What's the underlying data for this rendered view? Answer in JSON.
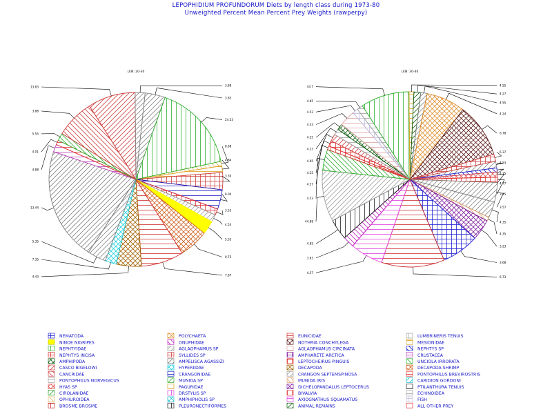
{
  "header": {
    "title": "LEPOPHIDIUM PROFUNDORUM Diets by length class during 1973-80",
    "subtitle": "Unweighted Percent Mean Percent Prey Weights (rawperpy)"
  },
  "chart_data": [
    {
      "type": "pie",
      "title": "LEN: 20-30",
      "slices": [
        {
          "label": "8.88",
          "value": 0.81,
          "prey": "OPHIUROIDEA"
        },
        {
          "label": "4.84",
          "value": 1.18,
          "prey": "PAGURIDAE"
        },
        {
          "label": "3.30",
          "value": 3.09,
          "prey": "SYLLIDES SP"
        },
        {
          "label": "8.00",
          "value": 3.52,
          "prey": "CRANGONIDAE"
        },
        {
          "label": "3.53",
          "value": 1.13,
          "prey": "NEPHTYS INCISA"
        },
        {
          "label": "4.53",
          "value": 1.35,
          "prey": "AGLAOPHAMUS SP"
        },
        {
          "label": "5.35",
          "value": 2.44,
          "prey": "NINOE NIGRIPES"
        },
        {
          "label": "9.75",
          "value": 5.31,
          "prey": "DECAPODA SHRIMP"
        },
        {
          "label": "7.87",
          "value": 7.67,
          "prey": "EUNICIDAE"
        },
        {
          "label": "4.43",
          "value": 4.52,
          "prey": "DECAPODA"
        },
        {
          "label": "7.35",
          "value": 2.03,
          "prey": "HYPERIIDAE"
        },
        {
          "label": "5.35",
          "value": 3.32,
          "prey": "CAPRELLIDAE"
        },
        {
          "label": "13.44",
          "value": 20.36,
          "prey": "AMPELISCA AGASSIZI"
        },
        {
          "label": "4.88",
          "value": 1.36,
          "prey": "CRUSTACEA"
        },
        {
          "label": "4.01",
          "value": 0.84,
          "prey": "PONTOPHILUS BREVIROSTRIS"
        },
        {
          "label": "5.55",
          "value": 1.36,
          "prey": "UNCIOLA IRRORATA"
        },
        {
          "label": "3.88",
          "value": 6.97,
          "prey": "CANCRIDAE"
        },
        {
          "label": "13.83",
          "value": 8.56,
          "prey": "CASCO BIGELOWI"
        },
        {
          "label": "3.88",
          "value": 1.79,
          "prey": "CUMACEA"
        },
        {
          "label": "3.83",
          "value": 3.63,
          "prey": "GAMMARIDAE"
        },
        {
          "label": "24.53",
          "value": 15.74,
          "prey": "NEPHTYIDAE"
        }
      ]
    },
    {
      "type": "pie",
      "title": "LEN: 30-40",
      "slices": [
        {
          "label": "4.53",
          "value": 1.43,
          "prey": "GAMMARIDAE"
        },
        {
          "label": "4.35",
          "value": 0.84,
          "prey": "NEPHTYS SP"
        },
        {
          "label": "4.77",
          "value": 1.12,
          "prey": "HYAS SP"
        },
        {
          "label": "3.25",
          "value": 1.12,
          "prey": "LEPTOCHEIRUS PINGUIS"
        },
        {
          "label": "3.57",
          "value": 4.19,
          "prey": "PANDALIDAE"
        },
        {
          "label": "4.35",
          "value": 3.41,
          "prey": "ARGIS DENTATA"
        },
        {
          "label": "4.35",
          "value": 0.83,
          "prey": "MUNIDA IRIS"
        },
        {
          "label": "3.23",
          "value": 4.49,
          "prey": "DICHELOPANDALUS LEPTOCERUS"
        },
        {
          "label": "3.68",
          "value": 7.98,
          "prey": "NEMATODA"
        },
        {
          "label": "6.73",
          "value": 13.45,
          "prey": "EUNICIDAE"
        },
        {
          "label": "4.37",
          "value": 7.03,
          "prey": "AXIOGNATHUS SQUAMATUS"
        },
        {
          "label": "3.83",
          "value": 2.41,
          "prey": "ONUPHIDAE"
        },
        {
          "label": "4.85",
          "value": 4.42,
          "prey": "PLEURONECTIFORMES"
        },
        {
          "label": "44.88",
          "value": 10.94,
          "prey": "CRANGON SEPTEMSPINOSA"
        },
        {
          "label": "4.53",
          "value": 4.5,
          "prey": "UNCIOLA IRRORATA"
        },
        {
          "label": "4.37",
          "value": 0.79,
          "prey": "BIVALVIA"
        },
        {
          "label": "4.25",
          "value": 1.17,
          "prey": "NEPHTYS INCISA"
        },
        {
          "label": "4.85",
          "value": 1.54,
          "prey": "CASCO BIGELOWI"
        },
        {
          "label": "4.23",
          "value": 1.29,
          "prey": "ECHINOIDEA"
        },
        {
          "label": "4.25",
          "value": 1.29,
          "prey": "AMPHIPODA"
        },
        {
          "label": "4.33",
          "value": 3.45,
          "prey": "AGLAOPHAMUS CIRCINATA"
        },
        {
          "label": "4.53",
          "value": 1.18,
          "prey": "FISH"
        },
        {
          "label": "4.85",
          "value": 1.28,
          "prey": "PONTOPHILUS NORVEGICUS"
        },
        {
          "label": "43.7",
          "value": 10.38,
          "prey": "NEPHTYIDAE"
        },
        {
          "label": "4.55",
          "value": 1.03,
          "prey": "MESIONIDAE"
        },
        {
          "label": "4.27",
          "value": 1.45,
          "prey": "ANIMAL REMAINS"
        },
        {
          "label": "4.55",
          "value": 1.36,
          "prey": "CUMACEA"
        },
        {
          "label": "4.24",
          "value": 8.33,
          "prey": "POLYCHAETA"
        },
        {
          "label": "6.78",
          "value": 11.56,
          "prey": "NOTHRIA CONCHYLEGA"
        },
        {
          "label": "6.37",
          "value": 1.53,
          "prey": "SYLLIDES SP"
        }
      ]
    }
  ],
  "legend": [
    {
      "name": "NEMATODA",
      "color": "#2020d0",
      "pattern": "box"
    },
    {
      "name": "NINOE NIGRIPES",
      "color": "#ffff00",
      "pattern": "solid"
    },
    {
      "name": "NEPHTYIDAE",
      "color": "#30b030",
      "pattern": "vline"
    },
    {
      "name": "NEPHTYS INCISA",
      "color": "#e03030",
      "pattern": "grid"
    },
    {
      "name": "AMPHIPODA",
      "color": "#106010",
      "pattern": "cross"
    },
    {
      "name": "CASCO BIGELOWI",
      "color": "#d04040",
      "pattern": "diag"
    },
    {
      "name": "CANCRIDAE",
      "color": "#d04040",
      "pattern": "adiag"
    },
    {
      "name": "PONTOPHILUS NORVEGICUS",
      "color": "#a0a0a0",
      "pattern": "hline"
    },
    {
      "name": "HYAS SP",
      "color": "#e05050",
      "pattern": "cross"
    },
    {
      "name": "CIROLANIDAE",
      "color": "#30a030",
      "pattern": "diag"
    },
    {
      "name": "OPHIUROIDEA",
      "color": "#e0c070",
      "pattern": "adiag"
    },
    {
      "name": "BROSME BROSME",
      "color": "#d03030",
      "pattern": "grid"
    },
    {
      "name": "POLYCHAETA",
      "color": "#e09030",
      "pattern": "cross"
    },
    {
      "name": "ONUPHIDAE",
      "color": "#c020c0",
      "pattern": "adiag"
    },
    {
      "name": "AGLAOPHAMUS SP",
      "color": "#a0a0a0",
      "pattern": "diag"
    },
    {
      "name": "SYLLIDES SP",
      "color": "#d04040",
      "pattern": "box"
    },
    {
      "name": "AMPELISCA AGASSIZI",
      "color": "#808080",
      "pattern": "diag"
    },
    {
      "name": "HYPERIIDAE",
      "color": "#20d0e0",
      "pattern": "cross"
    },
    {
      "name": "CRANGONIDAE",
      "color": "#2020c0",
      "pattern": "hline"
    },
    {
      "name": "MUNIDA SP",
      "color": "#30b030",
      "pattern": "diag"
    },
    {
      "name": "PAGURIDAE",
      "color": "#e0a020",
      "pattern": "hline"
    },
    {
      "name": "DRSTYLIS SP",
      "color": "#e040e0",
      "pattern": "vline"
    },
    {
      "name": "AMPHIPHOLIS SP",
      "color": "#20c0d0",
      "pattern": "cross"
    },
    {
      "name": "PLEURONECTIFORMES",
      "color": "#202020",
      "pattern": "vline"
    },
    {
      "name": "EUNICIDAE",
      "color": "#d03030",
      "pattern": "hline"
    },
    {
      "name": "NOTHRIA CONCHYLEGA",
      "color": "#602020",
      "pattern": "cross"
    },
    {
      "name": "AGLAOPHAMUS CIRCINATA",
      "color": "#e0a0a0",
      "pattern": "hline"
    },
    {
      "name": "AMPHARETE ARCTICA",
      "color": "#8020a0",
      "pattern": "grid"
    },
    {
      "name": "LEPTOCHEIRUS PINGUIS",
      "color": "#e03030",
      "pattern": "box"
    },
    {
      "name": "DECAPODA",
      "color": "#a06000",
      "pattern": "cross"
    },
    {
      "name": "CRANGON SEPTEMSPINOSA",
      "color": "#a0a0a0",
      "pattern": "diag"
    },
    {
      "name": "MUNIDA IRIS",
      "color": "#e0a070",
      "pattern": "adiag"
    },
    {
      "name": "DICHELOPANDALUS LEPTOCERUS",
      "color": "#8020a0",
      "pattern": "cross"
    },
    {
      "name": "BIVALVIA",
      "color": "#e03030",
      "pattern": "vline"
    },
    {
      "name": "AXIOGNATHUS SQUAMATUS",
      "color": "#e040e0",
      "pattern": "hline"
    },
    {
      "name": "ANIMAL REMAINS",
      "color": "#106010",
      "pattern": "diag"
    },
    {
      "name": "LUMBRINERIS TENUIS",
      "color": "#a0a0a0",
      "pattern": "vline"
    },
    {
      "name": "MESIONIDAE",
      "color": "#e0a020",
      "pattern": "hline"
    },
    {
      "name": "NEPHTYS SP",
      "color": "#2020d0",
      "pattern": "adiag"
    },
    {
      "name": "CRUSTACEA",
      "color": "#c040c0",
      "pattern": "hline"
    },
    {
      "name": "UNCIOLA IRRORATA",
      "color": "#30b030",
      "pattern": "adiag"
    },
    {
      "name": "DECAPODA SHRIMP",
      "color": "#d06020",
      "pattern": "cross"
    },
    {
      "name": "PONTOPHILUS BREVIROSTRIS",
      "color": "#e03030",
      "pattern": "hline"
    },
    {
      "name": "CARIDION GORDONI",
      "color": "#20c0d0",
      "pattern": "diag"
    },
    {
      "name": "PTILANTHURA TENUIS",
      "color": "#202020",
      "pattern": "hline"
    },
    {
      "name": "ECHINOIDEA",
      "color": "#a0a0a0",
      "pattern": "hline"
    },
    {
      "name": "FISH",
      "color": "#c0c0e0",
      "pattern": "grid"
    },
    {
      "name": "ALL OTHER PREY",
      "color": "#e03030",
      "pattern": "empty"
    }
  ],
  "colors": {
    "header": "#1414c8",
    "ink": "#000000"
  }
}
